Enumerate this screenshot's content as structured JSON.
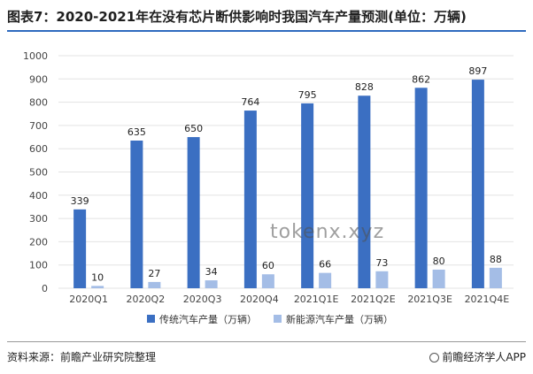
{
  "header": {
    "title": "图表7：2020-2021年在没有芯片断供影响时我国汽车产量预测(单位：万辆)"
  },
  "footer": {
    "source": "资料来源：前瞻产业研究院整理",
    "brand": "前瞻经济学人APP"
  },
  "watermark": {
    "text": "tokenx.xyz"
  },
  "colors": {
    "series_traditional": "#3b6fc2",
    "series_nev": "#a4bde6",
    "gridline": "#e3e3e3",
    "title_rule": "#2f6bbf"
  },
  "chart_data": {
    "type": "bar",
    "categories": [
      "2020Q1",
      "2020Q2",
      "2020Q3",
      "2020Q4",
      "2021Q1E",
      "2021Q2E",
      "2021Q3E",
      "2021Q4E"
    ],
    "series": [
      {
        "name": "传统汽车产量（万辆）",
        "values": [
          339,
          635,
          650,
          764,
          795,
          828,
          862,
          897
        ]
      },
      {
        "name": "新能源汽车产量（万辆）",
        "values": [
          10,
          27,
          34,
          60,
          66,
          73,
          80,
          88
        ]
      }
    ],
    "ylim": [
      0,
      1000
    ],
    "yticks": [
      0,
      100,
      200,
      300,
      400,
      500,
      600,
      700,
      800,
      900,
      1000
    ],
    "grid": true,
    "legend": "bottom"
  }
}
